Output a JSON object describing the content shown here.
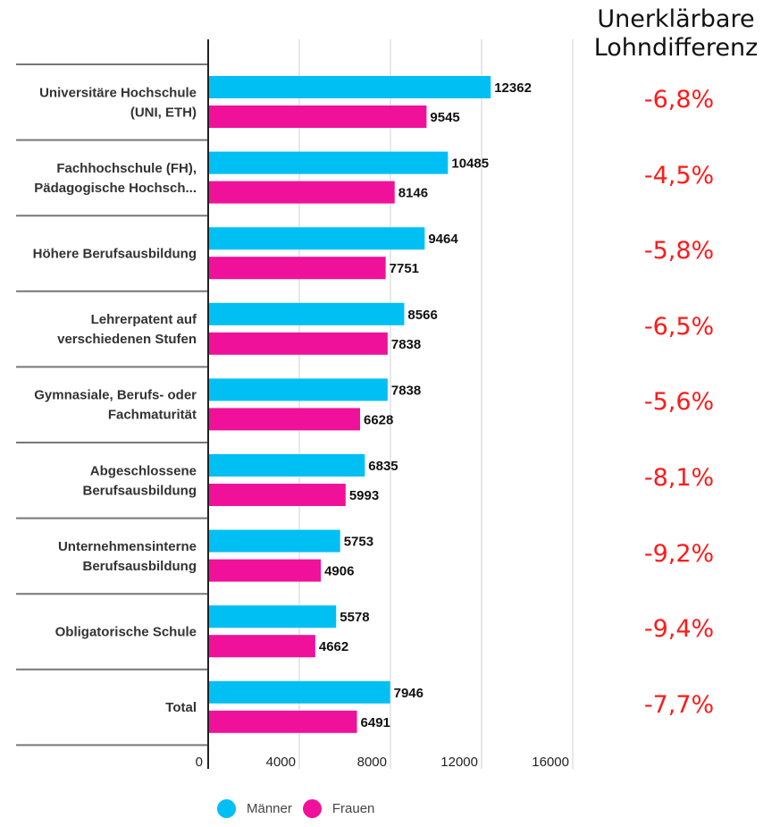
{
  "chart_data": {
    "type": "bar",
    "orientation": "horizontal",
    "title": "",
    "xlabel": "",
    "ylabel": "",
    "xlim": [
      0,
      16000
    ],
    "x_ticks": [
      0,
      4000,
      8000,
      12000,
      16000
    ],
    "x_tick_labels": [
      "0",
      "4000",
      "8000",
      "12000",
      "16000"
    ],
    "grid": true,
    "legend_position": "bottom",
    "categories": [
      [
        "Universitäre Hochschule",
        "(UNI, ETH)"
      ],
      [
        "Fachhochschule (FH),",
        "Pädagogische Hochsch..."
      ],
      [
        "Höhere Berufsausbildung"
      ],
      [
        "Lehrerpatent auf",
        "verschiedenen Stufen"
      ],
      [
        "Gymnasiale, Berufs- oder",
        "Fachmaturität"
      ],
      [
        "Abgeschlossene",
        "Berufsausbildung"
      ],
      [
        "Unternehmensinterne",
        "Berufsausbildung"
      ],
      [
        "Obligatorische Schule"
      ],
      [
        "Total"
      ]
    ],
    "series": [
      {
        "name": "Männer",
        "color": "#00BFF3",
        "values": [
          12362,
          10485,
          9464,
          8566,
          7838,
          6835,
          5753,
          5578,
          7946
        ]
      },
      {
        "name": "Frauen",
        "color": "#F0119A",
        "values": [
          9545,
          8146,
          7751,
          7838,
          6628,
          5993,
          4906,
          4662,
          6491
        ]
      }
    ],
    "side_annotation": {
      "title": [
        "Unerklärbare",
        "Lohndifferenz"
      ],
      "color": "#FF1A1A",
      "values": [
        "-6,8%",
        "-4,5%",
        "-5,8%",
        "-6,5%",
        "-5,6%",
        "-8,1%",
        "-9,2%",
        "-9,4%",
        "-7,7%"
      ]
    }
  },
  "legend": {
    "items": [
      {
        "label": "Männer",
        "color": "#00BFF3"
      },
      {
        "label": "Frauen",
        "color": "#F0119A"
      }
    ]
  }
}
